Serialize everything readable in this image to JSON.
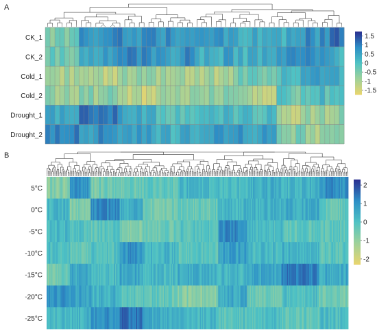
{
  "panels": [
    {
      "label": "A",
      "rows": [
        "CK_1",
        "CK_2",
        "Cold_1",
        "Cold_2",
        "Drought_1",
        "Drought_2"
      ],
      "n_columns": 62,
      "colorbar_ticks": [
        "1.5",
        "1",
        "0.5",
        "0",
        "-0.5",
        "-1",
        "-1.5"
      ],
      "value_range": [
        -2,
        2
      ],
      "grid_lines": true,
      "dendrogram": "top"
    },
    {
      "label": "B",
      "rows": [
        "5°C",
        "0°C",
        "-5°C",
        "-10°C",
        "-15°C",
        "-20°C",
        "-25°C"
      ],
      "n_columns": 260,
      "colorbar_ticks": [
        "2",
        "1",
        "0",
        "-1",
        "-2"
      ],
      "value_range": [
        -2.5,
        2.5
      ],
      "grid_lines": false,
      "dendrogram": "top"
    }
  ],
  "colors": {
    "scale_low": "#e9d56e",
    "scale_mid_low": "#9fd19a",
    "scale_mid": "#4fc2c4",
    "scale_mid_high": "#2d8ec6",
    "scale_high": "#2b2e8f",
    "dendrogram": "#3a3a3a",
    "grid": "#888888"
  },
  "chart_data": [
    {
      "type": "heatmap",
      "panel": "A",
      "rows": [
        "CK_1",
        "CK_2",
        "Cold_1",
        "Cold_2",
        "Drought_1",
        "Drought_2"
      ],
      "column_segments": [
        {
          "count": 7,
          "values": [
            -0.6,
            -0.4,
            -1.1,
            -1.0,
            0.5,
            1.0
          ]
        },
        {
          "count": 8,
          "values": [
            0.8,
            0.7,
            -1.2,
            -0.8,
            1.3,
            0.9
          ]
        },
        {
          "count": 8,
          "values": [
            1.0,
            0.9,
            -0.8,
            -1.4,
            0.4,
            0.5
          ]
        },
        {
          "count": 8,
          "values": [
            0.9,
            0.8,
            -1.2,
            -1.0,
            0.0,
            0.3
          ]
        },
        {
          "count": 9,
          "values": [
            0.6,
            0.5,
            -1.1,
            -0.9,
            0.2,
            0.6
          ]
        },
        {
          "count": 8,
          "values": [
            0.4,
            0.3,
            -0.4,
            -1.2,
            0.1,
            0.7
          ]
        },
        {
          "count": 6,
          "values": [
            0.3,
            0.9,
            0.2,
            -0.3,
            -1.2,
            -0.7
          ]
        },
        {
          "count": 5,
          "values": [
            0.8,
            1.0,
            0.4,
            0.0,
            -0.9,
            -1.0
          ]
        },
        {
          "count": 3,
          "values": [
            1.5,
            0.3,
            0.5,
            0.3,
            -0.8,
            -0.4
          ]
        }
      ]
    },
    {
      "type": "heatmap",
      "panel": "B",
      "rows": [
        "5°C",
        "0°C",
        "-5°C",
        "-10°C",
        "-15°C",
        "-20°C",
        "-25°C"
      ],
      "column_segments": [
        {
          "count": 20,
          "values": [
            -0.8,
            0.3,
            0.2,
            0.0,
            -0.6,
            1.0,
            0.2
          ]
        },
        {
          "count": 18,
          "values": [
            1.0,
            -0.8,
            0.0,
            -0.3,
            0.6,
            0.8,
            0.4
          ]
        },
        {
          "count": 25,
          "values": [
            -0.6,
            1.3,
            -0.2,
            0.0,
            0.2,
            0.4,
            1.1
          ]
        },
        {
          "count": 20,
          "values": [
            -0.4,
            0.5,
            -0.8,
            1.1,
            0.7,
            -0.2,
            1.6
          ]
        },
        {
          "count": 30,
          "values": [
            -0.3,
            -0.5,
            -0.4,
            0.3,
            0.2,
            -0.3,
            0.5
          ]
        },
        {
          "count": 35,
          "values": [
            0.3,
            -0.4,
            -0.1,
            -0.2,
            0.5,
            -0.9,
            0.2
          ]
        },
        {
          "count": 25,
          "values": [
            0.1,
            0.3,
            1.2,
            0.8,
            0.3,
            0.6,
            -0.1
          ]
        },
        {
          "count": 30,
          "values": [
            0.5,
            0.4,
            0.1,
            0.2,
            0.7,
            -0.4,
            0.0
          ]
        },
        {
          "count": 32,
          "values": [
            0.3,
            0.5,
            -0.2,
            0.4,
            1.5,
            0.1,
            -0.3
          ]
        },
        {
          "count": 25,
          "values": [
            1.1,
            -0.3,
            -0.3,
            -0.2,
            0.6,
            -0.6,
            0.1
          ]
        }
      ]
    }
  ]
}
